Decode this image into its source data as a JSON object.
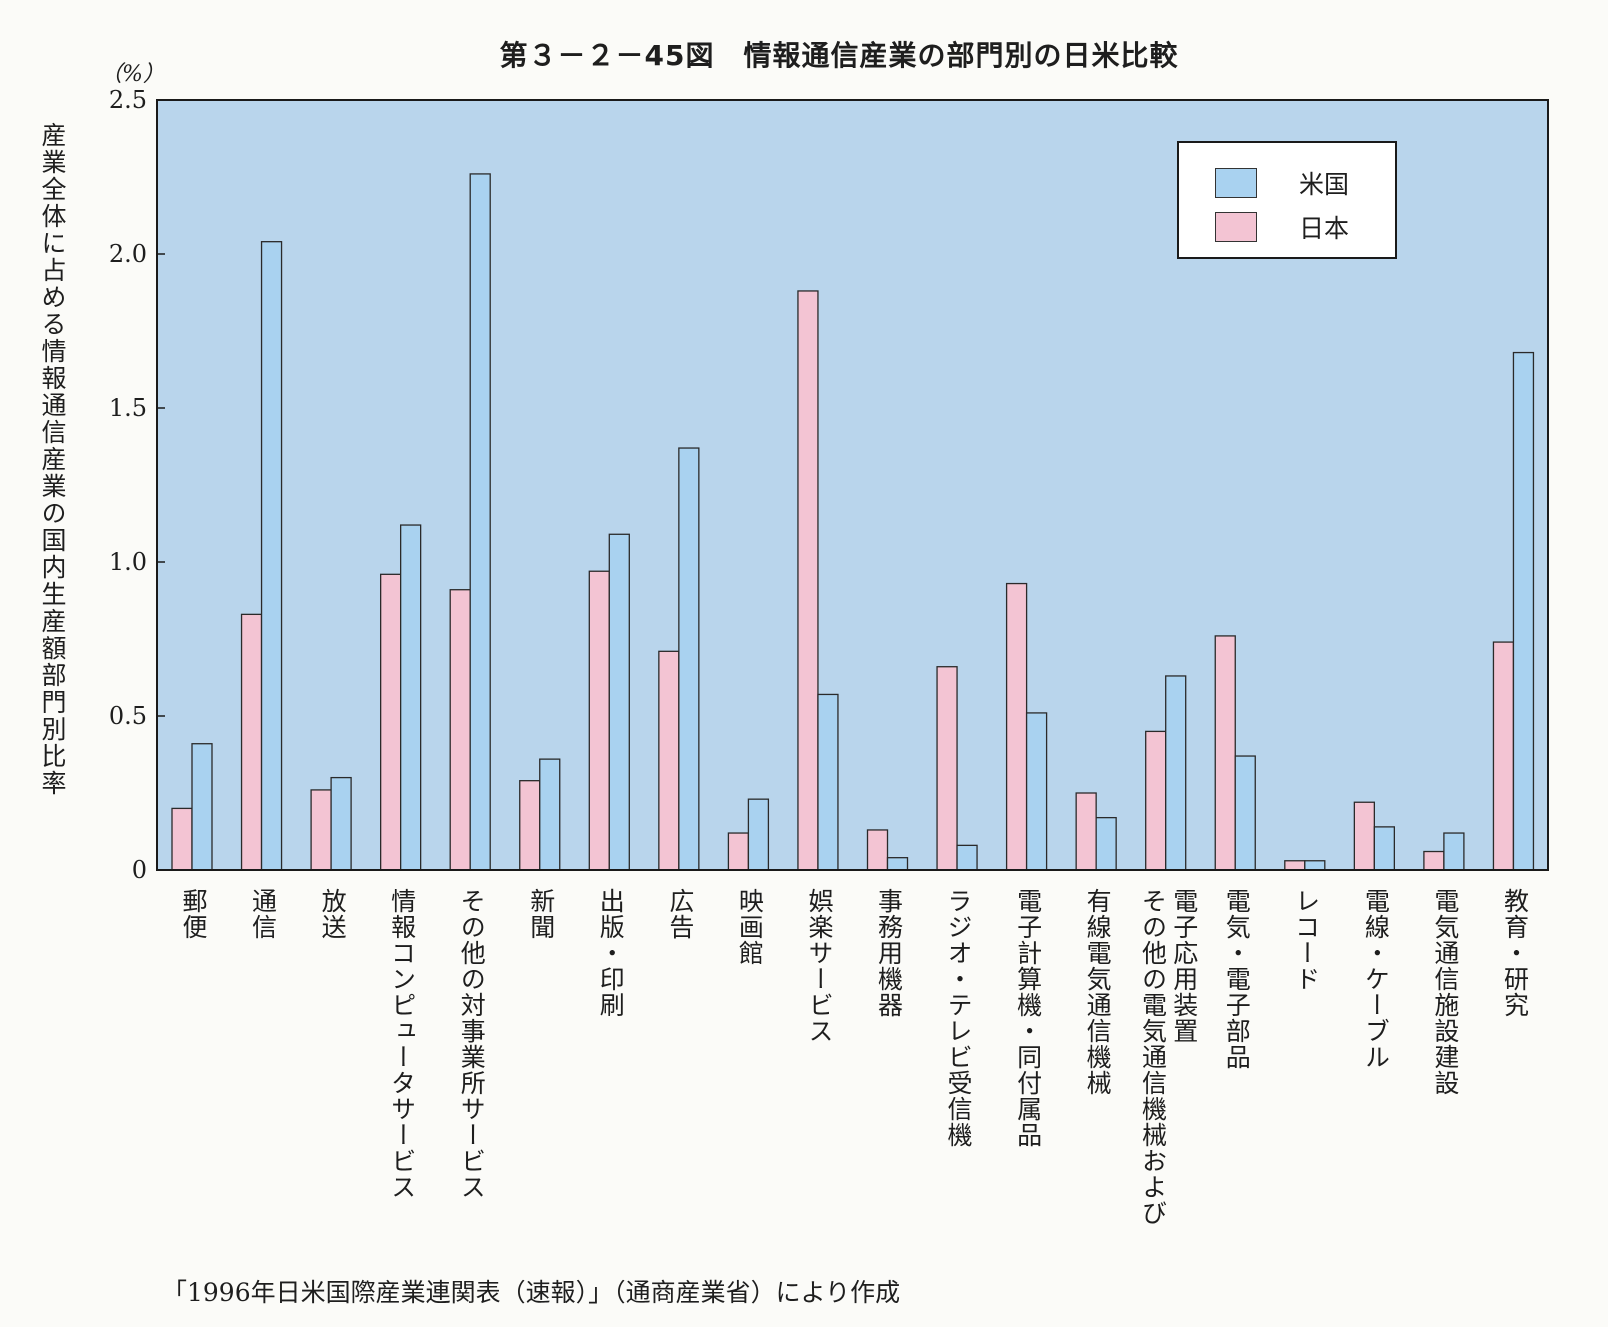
{
  "title": "第３－２－45図　情報通信産業の部門別の日米比較",
  "unit_label": "（%）",
  "y_axis_title": "産業全体に占める情報通信産業の国内生産額部門別比率",
  "source_note": "「1996年日米国際産業連関表（速報）」（通商産業省）により作成",
  "colors": {
    "plot_bg": "#b9d5ec",
    "us": "#a9d2f0",
    "japan": "#f3c4d3",
    "frame": "#1a1a1a"
  },
  "chart_data": {
    "type": "bar",
    "ylim": [
      0,
      2.5
    ],
    "y_ticks": [
      "0",
      "0.5",
      "1.0",
      "1.5",
      "2.0",
      "2.5"
    ],
    "legend_position": "top-right",
    "grid": false,
    "categories": [
      "郵便",
      "通信",
      "放送",
      "情報コンピュータサービス",
      "その他の対事業所サービス",
      "新聞",
      "出版・印刷",
      "広告",
      "映画館",
      "娯楽サービス",
      "事務用機器",
      "ラジオ・テレビ受信機",
      "電子計算機・同付属品",
      "有線電気通信機械",
      "電子応用装置\nその他の電気通信機械および",
      "電気・電子部品",
      "レコード",
      "電線・ケーブル",
      "電気通信施設建設",
      "教育・研究"
    ],
    "series": [
      {
        "name": "日本",
        "values": [
          0.2,
          0.83,
          0.26,
          0.96,
          0.91,
          0.29,
          0.97,
          0.71,
          0.12,
          1.88,
          0.13,
          0.66,
          0.93,
          0.25,
          0.45,
          0.76,
          0.03,
          0.22,
          0.06,
          0.74
        ]
      },
      {
        "name": "米国",
        "values": [
          0.41,
          2.04,
          0.3,
          1.12,
          2.26,
          0.36,
          1.09,
          1.37,
          0.23,
          0.57,
          0.04,
          0.08,
          0.51,
          0.17,
          0.63,
          0.37,
          0.03,
          0.14,
          0.12,
          1.68
        ]
      }
    ]
  }
}
